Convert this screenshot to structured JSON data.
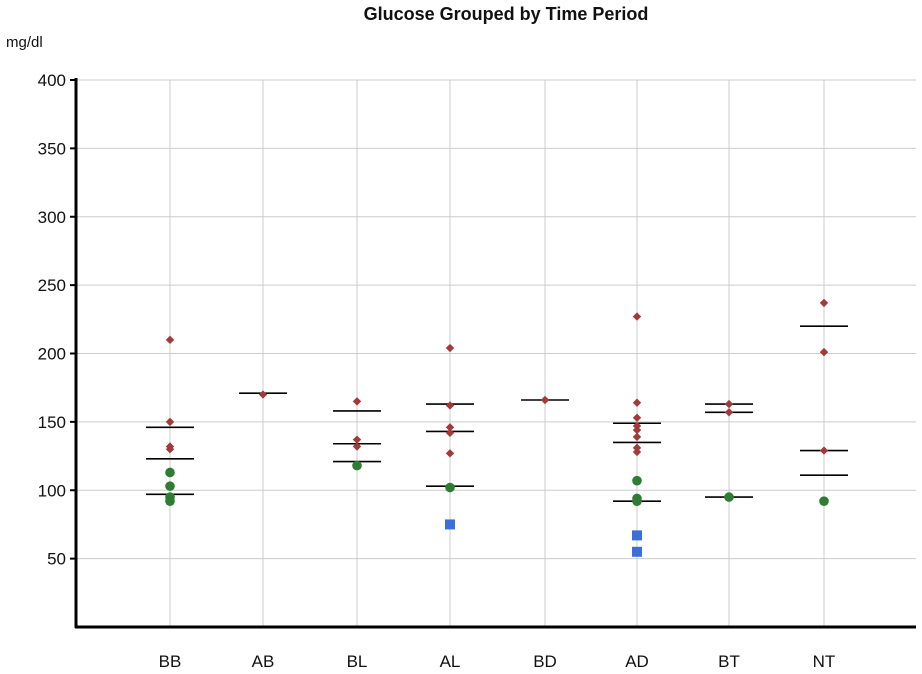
{
  "chart_data": {
    "type": "scatter",
    "title": "Glucose Grouped by Time Period",
    "ylabel": "mg/dl",
    "xlabel": "",
    "ylim": [
      0,
      400
    ],
    "yticks": [
      50,
      100,
      150,
      200,
      250,
      300,
      350,
      400
    ],
    "categories": [
      "BB",
      "AB",
      "BL",
      "AL",
      "BD",
      "AD",
      "BT",
      "NT"
    ],
    "grid": true,
    "colors": {
      "high": "#a33a3a",
      "normal": "#2e7d32",
      "low": "#3b6fd9",
      "mark": "#000000",
      "grid": "#cccccc"
    },
    "points": [
      {
        "category": "BB",
        "value": 210,
        "level": "high"
      },
      {
        "category": "BB",
        "value": 150,
        "level": "high"
      },
      {
        "category": "BB",
        "value": 132,
        "level": "high"
      },
      {
        "category": "BB",
        "value": 130,
        "level": "high"
      },
      {
        "category": "BB",
        "value": 113,
        "level": "normal"
      },
      {
        "category": "BB",
        "value": 103,
        "level": "normal"
      },
      {
        "category": "BB",
        "value": 95,
        "level": "normal"
      },
      {
        "category": "BB",
        "value": 92,
        "level": "normal"
      },
      {
        "category": "AB",
        "value": 170,
        "level": "high"
      },
      {
        "category": "BL",
        "value": 165,
        "level": "high"
      },
      {
        "category": "BL",
        "value": 137,
        "level": "high"
      },
      {
        "category": "BL",
        "value": 132,
        "level": "high"
      },
      {
        "category": "BL",
        "value": 118,
        "level": "normal"
      },
      {
        "category": "AL",
        "value": 204,
        "level": "high"
      },
      {
        "category": "AL",
        "value": 162,
        "level": "high"
      },
      {
        "category": "AL",
        "value": 146,
        "level": "high"
      },
      {
        "category": "AL",
        "value": 142,
        "level": "high"
      },
      {
        "category": "AL",
        "value": 127,
        "level": "high"
      },
      {
        "category": "AL",
        "value": 102,
        "level": "normal"
      },
      {
        "category": "AL",
        "value": 75,
        "level": "low"
      },
      {
        "category": "BD",
        "value": 166,
        "level": "high"
      },
      {
        "category": "AD",
        "value": 227,
        "level": "high"
      },
      {
        "category": "AD",
        "value": 164,
        "level": "high"
      },
      {
        "category": "AD",
        "value": 153,
        "level": "high"
      },
      {
        "category": "AD",
        "value": 147,
        "level": "high"
      },
      {
        "category": "AD",
        "value": 144,
        "level": "high"
      },
      {
        "category": "AD",
        "value": 139,
        "level": "high"
      },
      {
        "category": "AD",
        "value": 131,
        "level": "high"
      },
      {
        "category": "AD",
        "value": 128,
        "level": "high"
      },
      {
        "category": "AD",
        "value": 107,
        "level": "normal"
      },
      {
        "category": "AD",
        "value": 94,
        "level": "normal"
      },
      {
        "category": "AD",
        "value": 92,
        "level": "normal"
      },
      {
        "category": "AD",
        "value": 67,
        "level": "low"
      },
      {
        "category": "AD",
        "value": 55,
        "level": "low"
      },
      {
        "category": "BT",
        "value": 163,
        "level": "high"
      },
      {
        "category": "BT",
        "value": 157,
        "level": "high"
      },
      {
        "category": "BT",
        "value": 95,
        "level": "normal"
      },
      {
        "category": "NT",
        "value": 237,
        "level": "high"
      },
      {
        "category": "NT",
        "value": 201,
        "level": "high"
      },
      {
        "category": "NT",
        "value": 129,
        "level": "high"
      },
      {
        "category": "NT",
        "value": 92,
        "level": "normal"
      }
    ],
    "marks": [
      {
        "category": "BB",
        "value": 146
      },
      {
        "category": "BB",
        "value": 123
      },
      {
        "category": "BB",
        "value": 97
      },
      {
        "category": "AB",
        "value": 171
      },
      {
        "category": "BL",
        "value": 158
      },
      {
        "category": "BL",
        "value": 134
      },
      {
        "category": "BL",
        "value": 121
      },
      {
        "category": "AL",
        "value": 163
      },
      {
        "category": "AL",
        "value": 143
      },
      {
        "category": "AL",
        "value": 103
      },
      {
        "category": "BD",
        "value": 166
      },
      {
        "category": "AD",
        "value": 149
      },
      {
        "category": "AD",
        "value": 135
      },
      {
        "category": "AD",
        "value": 92
      },
      {
        "category": "BT",
        "value": 163
      },
      {
        "category": "BT",
        "value": 157
      },
      {
        "category": "BT",
        "value": 95
      },
      {
        "category": "NT",
        "value": 220
      },
      {
        "category": "NT",
        "value": 129
      },
      {
        "category": "NT",
        "value": 111
      }
    ]
  }
}
